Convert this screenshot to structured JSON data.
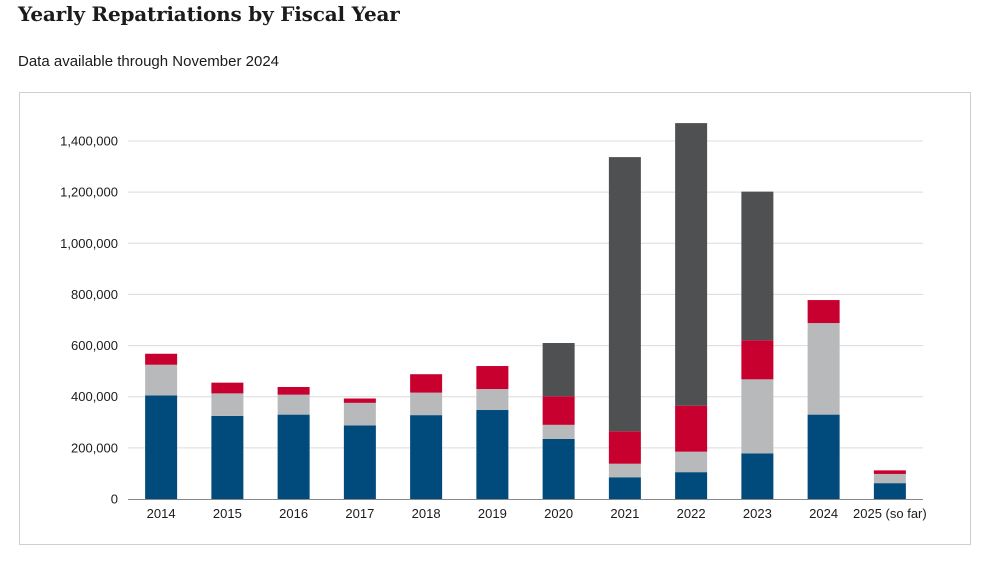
{
  "page": {
    "title": "Yearly Repatriations by Fiscal Year",
    "subtitle": "Data available through November 2024"
  },
  "colors": {
    "series": [
      "#004a7c",
      "#b8b9bb",
      "#c8002f",
      "#4f5052"
    ],
    "grid": "#dcdcdc",
    "axis": "#888888"
  },
  "chart_data": {
    "type": "bar",
    "stacked": true,
    "categories": [
      "2014",
      "2015",
      "2016",
      "2017",
      "2018",
      "2019",
      "2020",
      "2021",
      "2022",
      "2023",
      "2024",
      "2025 (so far)"
    ],
    "series": [
      {
        "values": [
          405000,
          325000,
          330000,
          288000,
          328000,
          348000,
          235000,
          85000,
          105000,
          178000,
          330000,
          62000
        ]
      },
      {
        "values": [
          120000,
          88000,
          78000,
          88000,
          88000,
          82000,
          55000,
          53000,
          80000,
          290000,
          358000,
          36000
        ]
      },
      {
        "values": [
          43000,
          42000,
          30000,
          17000,
          72000,
          90000,
          112000,
          127000,
          180000,
          153000,
          90000,
          14000
        ]
      },
      {
        "values": [
          0,
          0,
          0,
          0,
          0,
          0,
          208000,
          1072000,
          1105000,
          581000,
          0,
          0
        ]
      }
    ],
    "y_ticks": [
      "0",
      "200,000",
      "400,000",
      "600,000",
      "800,000",
      "1,000,000",
      "1,200,000",
      "1,400,000"
    ],
    "ylim": [
      0,
      1400000
    ],
    "grid": true,
    "legend": "none"
  }
}
